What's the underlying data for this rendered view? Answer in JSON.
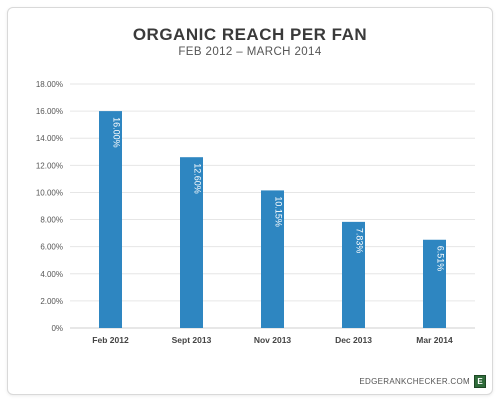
{
  "chart_data": {
    "type": "bar",
    "title": "ORGANIC REACH PER FAN",
    "subtitle": "FEB 2012 – MARCH 2014",
    "categories": [
      "Feb 2012",
      "Sept 2013",
      "Nov 2013",
      "Dec 2013",
      "Mar 2014"
    ],
    "values": [
      16.0,
      12.6,
      10.15,
      7.83,
      6.51
    ],
    "value_labels": [
      "16.00%",
      "12.60%",
      "10.15%",
      "7.83%",
      "6.51%"
    ],
    "y_ticks": [
      "0%",
      "2.00%",
      "4.00%",
      "6.00%",
      "8.00%",
      "10.00%",
      "12.00%",
      "14.00%",
      "16.00%",
      "18.00%"
    ],
    "ylim": [
      0,
      18
    ],
    "grid": true,
    "legend": "none",
    "bar_color": "#2e86c1"
  },
  "footer": {
    "source": "EDGERANKCHECKER.COM",
    "logo_letter": "E",
    "logo_color": "#2f6b3a"
  }
}
